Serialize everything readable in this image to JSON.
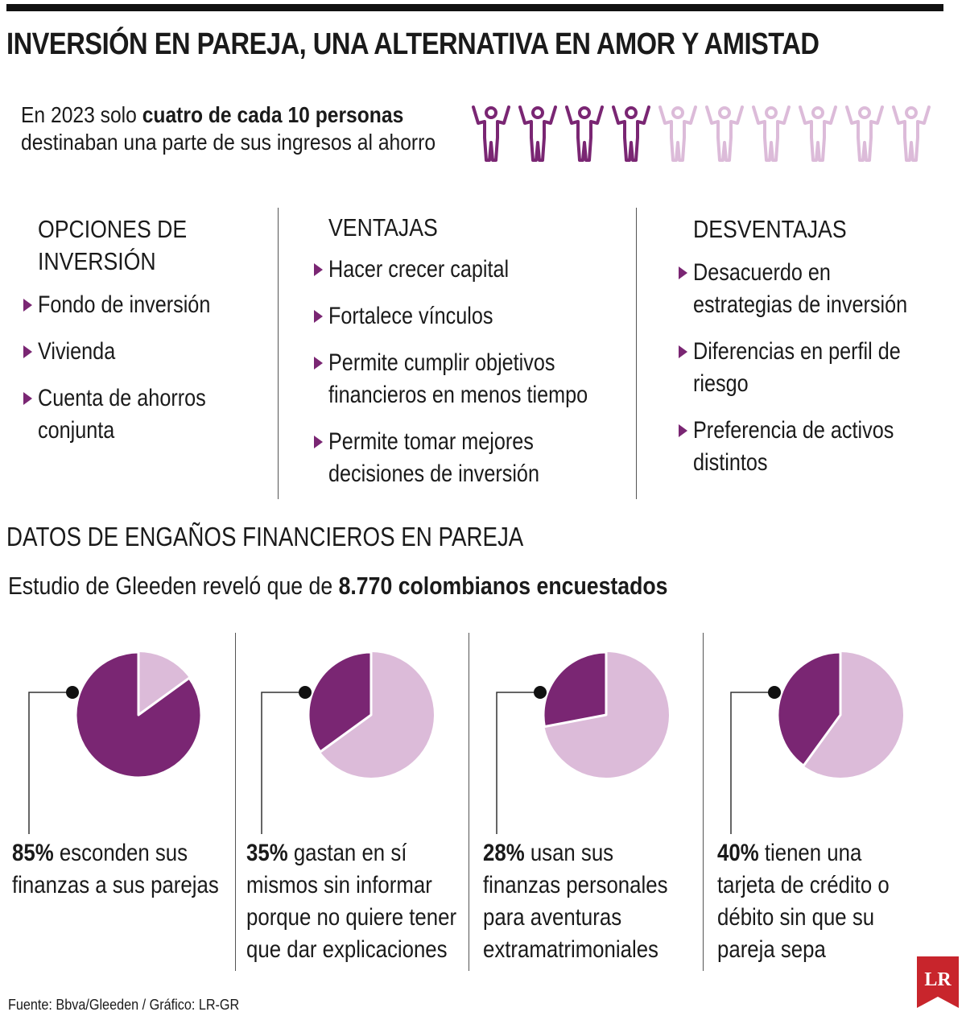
{
  "title": "INVERSIÓN EN PAREJA, UNA ALTERNATIVA EN AMOR Y AMISTAD",
  "intro": {
    "prefix": "En 2023 solo ",
    "bold": "cuatro de cada 10 personas",
    "line2": "destinaban una parte de sus ingresos al ahorro"
  },
  "people_icons": {
    "total": 10,
    "highlighted": 4,
    "icon": "person-arms-up-icon"
  },
  "columns": {
    "options": {
      "heading_line1": "OPCIONES DE",
      "heading_line2": "INVERSIÓN",
      "items": [
        "Fondo de inversión",
        "Vivienda",
        "Cuenta de ahorros conjunta"
      ]
    },
    "advantages": {
      "heading": "VENTAJAS",
      "items": [
        "Hacer crecer capital",
        "Fortalece vínculos",
        "Permite cumplir objetivos financieros en menos tiempo",
        "Permite tomar mejores decisiones de inversión"
      ]
    },
    "disadvantages": {
      "heading": "DESVENTAJAS",
      "items": [
        "Desacuerdo en estrategias de inversión",
        "Diferencias en perfil de riesgo",
        "Preferencia de activos distintos"
      ]
    }
  },
  "section_title": "DATOS DE ENGAÑOS FINANCIEROS EN PAREJA",
  "study": {
    "prefix": "Estudio de Gleeden reveló que de ",
    "bold": "8.770 colombianos encuestados"
  },
  "chart_data": {
    "type": "pie",
    "unit": "%",
    "values": [
      85,
      35,
      28,
      40
    ],
    "labels": [
      "85%",
      "35%",
      "28%",
      "40%"
    ],
    "captions": [
      "esconden sus finanzas a sus parejas",
      "gastan en sí mismos sin informar porque no quiere tener que dar explicaciones",
      "usan sus finanzas personales para aventuras extramatrimoniales",
      "tienen una tarjeta de crédito o débito sin que su pareja sepa"
    ]
  },
  "colors": {
    "highlight": "#7a2673",
    "light": "#dcbbd9",
    "text": "#1a1a1a"
  },
  "source": "Fuente: Bbva/Gleeden / Gráfico: LR-GR",
  "logo": {
    "text": "LR",
    "color": "#c8252c"
  }
}
